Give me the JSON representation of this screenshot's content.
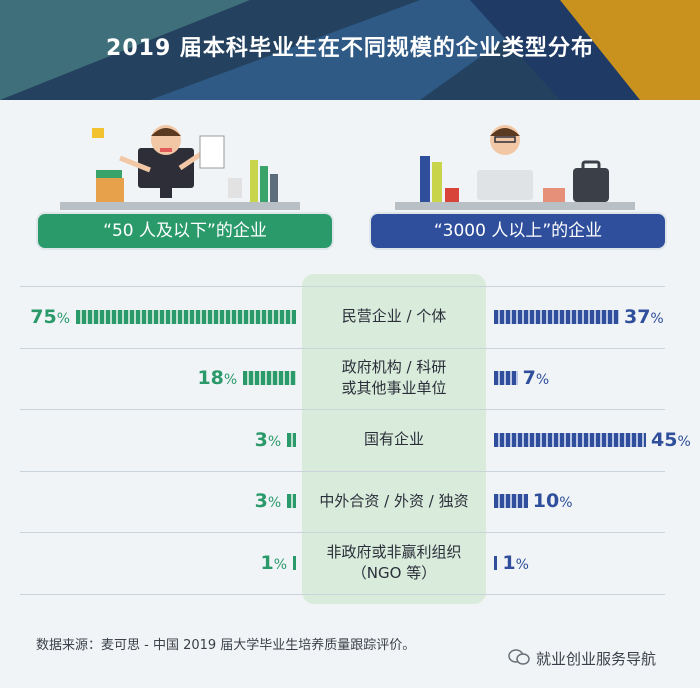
{
  "header": {
    "title": "2019 届本科毕业生在不同规模的企业类型分布"
  },
  "groups": {
    "left": "“50 人及以下”的企业",
    "right": "“3000 人以上”的企业"
  },
  "chart_data": {
    "type": "bar",
    "title": "2019 届本科毕业生在不同规模的企业类型分布",
    "categories": [
      [
        "民营企业 / 个体"
      ],
      [
        "政府机构 / 科研",
        "或其他事业单位"
      ],
      [
        "国有企业"
      ],
      [
        "中外合资 / 外资 / 独资"
      ],
      [
        "非政府或非赢利组织",
        "（NGO 等）"
      ]
    ],
    "series": [
      {
        "name": "“50 人及以下”的企业",
        "values": [
          75,
          18,
          3,
          3,
          1
        ],
        "color": "#2b9a6b"
      },
      {
        "name": "“3000 人以上”的企业",
        "values": [
          37,
          7,
          45,
          10,
          1
        ],
        "color": "#2f4f9c"
      }
    ],
    "unit": "%"
  },
  "footer": {
    "source": "数据来源：麦可思 - 中国 2019 届大学毕业生培养质量跟踪评价。",
    "watermark": "就业创业服务导航"
  }
}
